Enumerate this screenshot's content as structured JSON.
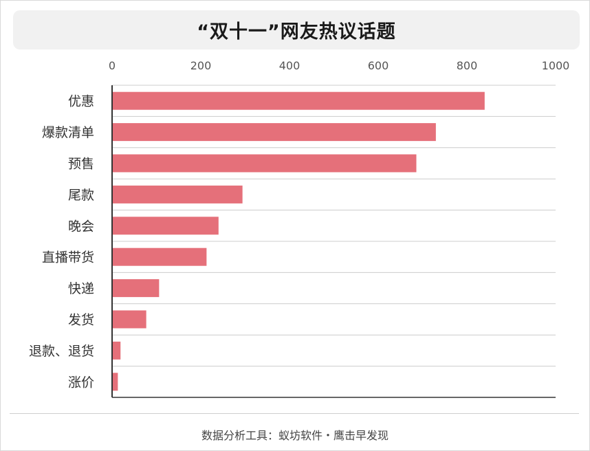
{
  "title": "“双十一”网友热议话题",
  "footer": "数据分析工具：蚁坊软件・鹰击早发现",
  "colors": {
    "bar": "#e5707a",
    "grid": "#cccccc",
    "axis": "#333333",
    "tick_text": "#555555",
    "label_text": "#333333"
  },
  "chart_data": {
    "type": "bar",
    "orientation": "horizontal",
    "categories": [
      "优惠",
      "爆款清单",
      "预售",
      "尾款",
      "晚会",
      "直播带货",
      "快递",
      "发货",
      "退款、退货",
      "涨价"
    ],
    "values": [
      840,
      730,
      686,
      294,
      240,
      213,
      106,
      77,
      19,
      13
    ],
    "xlim": [
      0,
      1000
    ],
    "xticks": [
      "0",
      "200",
      "400",
      "600",
      "800",
      "1000"
    ],
    "x_axis_position": "top",
    "grid": true,
    "legend": false,
    "title": "“双十一”网友热议话题",
    "xlabel": "",
    "ylabel": ""
  }
}
